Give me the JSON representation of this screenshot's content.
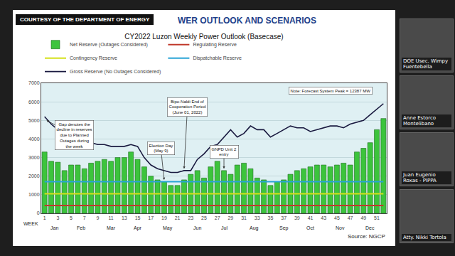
{
  "page": {
    "banner": "COURTESY OF THE DEPARTMENT OF ENERGY",
    "slide_title": "WER OUTLOOK AND SCENARIOS",
    "participants": [
      "DOE Usec. Wimpy Fuentebella",
      "Anne Estorco Montelibano",
      "Juan Eugenio Roxas - PIPPA",
      "Atty. Nikki Tortola"
    ]
  },
  "chart_data": {
    "type": "bar",
    "title": "CY2022 Luzon Weekly Power Outlook (Basecase)",
    "xlabel": "WEEK",
    "x": [
      1,
      2,
      3,
      4,
      5,
      6,
      7,
      8,
      9,
      10,
      11,
      12,
      13,
      14,
      15,
      16,
      17,
      18,
      19,
      20,
      21,
      22,
      23,
      24,
      25,
      26,
      27,
      28,
      29,
      30,
      31,
      32,
      33,
      34,
      35,
      36,
      37,
      38,
      39,
      40,
      41,
      42,
      43,
      44,
      45,
      46,
      47,
      48,
      49,
      50,
      51,
      52
    ],
    "xlim": [
      0.5,
      52.5
    ],
    "xticks": [
      1,
      3,
      5,
      7,
      9,
      11,
      13,
      15,
      17,
      19,
      21,
      23,
      25,
      27,
      29,
      31,
      33,
      35,
      37,
      39,
      41,
      43,
      45,
      47,
      49,
      51
    ],
    "ylim": [
      0,
      7000
    ],
    "yticks": [
      0,
      1000,
      2000,
      3000,
      4000,
      5000,
      6000,
      7000
    ],
    "grid": true,
    "legend": "top",
    "series": [
      {
        "name": "Net Reserve (Outages Considered)",
        "type": "bar",
        "color": "#3cc43c",
        "values": [
          3300,
          2800,
          2750,
          2300,
          2600,
          2600,
          2400,
          2700,
          2800,
          2900,
          2800,
          3000,
          3000,
          3300,
          2900,
          2500,
          2000,
          1800,
          1700,
          1500,
          1500,
          1800,
          2100,
          2300,
          1900,
          2500,
          2800,
          2300,
          2100,
          2600,
          2700,
          2400,
          1900,
          1800,
          1500,
          1700,
          1800,
          2100,
          2300,
          2400,
          2500,
          2600,
          2600,
          2500,
          2600,
          2700,
          2600,
          3300,
          3500,
          3800,
          4500,
          5100
        ]
      },
      {
        "name": "Regulating Reserve",
        "type": "line",
        "color": "#c0392b",
        "values": [
          420,
          420,
          420,
          420,
          420,
          420,
          420,
          420,
          420,
          420,
          420,
          420,
          420,
          420,
          420,
          420,
          420,
          420,
          420,
          420,
          420,
          420,
          420,
          420,
          420,
          420,
          420,
          420,
          420,
          420,
          420,
          420,
          420,
          420,
          420,
          420,
          420,
          420,
          420,
          420,
          420,
          420,
          420,
          420,
          420,
          420,
          420,
          420,
          420,
          420,
          420,
          420
        ]
      },
      {
        "name": "Contingency Reserve",
        "type": "line",
        "color": "#d4e01a",
        "values": [
          1050,
          1050,
          1050,
          1050,
          1050,
          1050,
          1050,
          1050,
          1050,
          1050,
          1050,
          1050,
          1050,
          1050,
          1050,
          1050,
          1050,
          1050,
          1050,
          1050,
          1050,
          1050,
          1050,
          1050,
          1050,
          1050,
          1050,
          1050,
          1050,
          1050,
          1050,
          1050,
          1050,
          1050,
          1050,
          1050,
          1050,
          1050,
          1050,
          1050,
          1050,
          1050,
          1050,
          1050,
          1050,
          1050,
          1050,
          1050,
          1050,
          1050,
          1050,
          1050
        ]
      },
      {
        "name": "Dispatchable Reserve",
        "type": "line",
        "color": "#29a3d6",
        "values": [
          1700,
          1700,
          1700,
          1700,
          1700,
          1700,
          1700,
          1700,
          1700,
          1700,
          1700,
          1700,
          1700,
          1700,
          1700,
          1700,
          1700,
          1700,
          1700,
          1700,
          1700,
          1700,
          1700,
          1700,
          1700,
          1700,
          1700,
          1700,
          1700,
          1700,
          1700,
          1700,
          1700,
          1700,
          1700,
          1700,
          1700,
          1700,
          1700,
          1700,
          1700,
          1700,
          1700,
          1700,
          1700,
          1700,
          1700,
          1700,
          1700,
          1700,
          1700,
          1700
        ]
      },
      {
        "name": "Gross Reserve (No Outages Considered)",
        "type": "line",
        "color": "#1a1a40",
        "values": [
          5200,
          4800,
          4500,
          4200,
          4000,
          3900,
          3800,
          3800,
          3700,
          3700,
          3600,
          3600,
          3600,
          3700,
          3600,
          3000,
          2600,
          2400,
          2300,
          2200,
          2200,
          2300,
          2300,
          2900,
          3200,
          3600,
          3700,
          4100,
          4500,
          4100,
          4300,
          4700,
          4500,
          4500,
          4100,
          4300,
          4500,
          4700,
          4600,
          4600,
          4400,
          4500,
          4600,
          4700,
          4700,
          4600,
          4800,
          4900,
          5000,
          5300,
          5600,
          5900
        ]
      }
    ],
    "annotations": [
      {
        "text": [
          "Gap denotes the",
          "decline in reserves",
          "due to Planned",
          "Outages during",
          "the week"
        ],
        "x": 1.3,
        "y": 5000,
        "text_x": 5.5,
        "text_y": 4200
      },
      {
        "text": [
          "Election Day",
          "(May 9)"
        ],
        "x": 19,
        "y": 1800,
        "text_x": 18.5,
        "text_y": 3500
      },
      {
        "text": [
          "Bipo-Naldi End of",
          "Cooperation Period",
          "(June 01, 2022)"
        ],
        "x": 22,
        "y": 2400,
        "text_x": 22.5,
        "text_y": 5700
      },
      {
        "text": [
          "GNPD Unit 2",
          "entry"
        ],
        "x": 28,
        "y": 2400,
        "text_x": 28,
        "text_y": 3300
      },
      {
        "text": [
          "Note: Forecast System Peak = 12387 MW"
        ],
        "x": 44,
        "y": 6600
      }
    ],
    "months": [
      {
        "label": "Jan",
        "x": 2.5
      },
      {
        "label": "Feb",
        "x": 6.5
      },
      {
        "label": "Mar",
        "x": 11
      },
      {
        "label": "Apr",
        "x": 15
      },
      {
        "label": "May",
        "x": 19.5
      },
      {
        "label": "Jun",
        "x": 24
      },
      {
        "label": "Jul",
        "x": 28
      },
      {
        "label": "Aug",
        "x": 32.5
      },
      {
        "label": "Sep",
        "x": 37
      },
      {
        "label": "Oct",
        "x": 41
      },
      {
        "label": "Nov",
        "x": 45.5
      },
      {
        "label": "Dec",
        "x": 50
      }
    ],
    "source": "Source: NGCP"
  }
}
